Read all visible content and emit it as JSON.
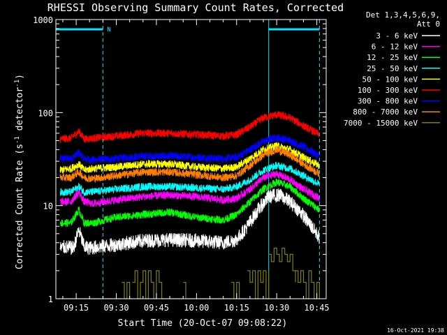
{
  "chart_data": {
    "type": "line",
    "title": "RHESSI Observing Summary Count Rates, Corrected",
    "xlabel": "Start Time (20-Oct-07 09:08:22)",
    "ylabel": "Corrected Count Rate (s^-1 detector^-1)",
    "ylabel_parts": [
      "Corrected Count Rate (s",
      "-1",
      " detector",
      "-1",
      ")"
    ],
    "y_scale": "log",
    "ylim": [
      1,
      1000
    ],
    "xlim_minutes": [
      -7.6,
      93.5
    ],
    "y_tick_labels": [
      "1",
      "10",
      "100",
      "1000"
    ],
    "x_tick_labels": [
      "09:15",
      "09:30",
      "09:45",
      "10:00",
      "10:15",
      "10:30",
      "10:45"
    ],
    "x_tick_minutes": [
      0,
      15,
      30,
      45,
      60,
      75,
      90
    ],
    "legend_header": [
      "Det 1,3,4,5,6,9,",
      "Att 0"
    ],
    "legend_position": "top-right",
    "timestamp": "16-Oct-2021 19:38",
    "night_bars": [
      {
        "start": -7.6,
        "end": 10.0,
        "label": "N"
      },
      {
        "start": 72.0,
        "end": 91.0,
        "label": ""
      }
    ],
    "night_boundaries": [
      -7.6,
      10.0,
      72.0,
      91.0
    ],
    "series": [
      {
        "name": "3 - 6 keV",
        "color": "#ffffff",
        "x": [
          -6,
          -4,
          -1,
          1,
          3,
          5,
          8,
          15,
          25,
          35,
          45,
          55,
          60,
          64,
          68,
          72,
          76,
          80,
          84,
          88,
          91
        ],
        "y": [
          3.5,
          3.6,
          3.5,
          5.5,
          3.6,
          3.5,
          3.6,
          3.8,
          4.2,
          4.3,
          4.2,
          4.0,
          4.3,
          6.0,
          9.0,
          12.5,
          13.0,
          11.0,
          8.5,
          6.0,
          4.5
        ]
      },
      {
        "name": "6 - 12 keV",
        "color": "#ff00ff",
        "x": [
          -6,
          -2,
          1,
          3,
          6,
          15,
          25,
          35,
          45,
          55,
          60,
          65,
          70,
          75,
          80,
          85,
          91
        ],
        "y": [
          11,
          11,
          14,
          11,
          10.5,
          11.5,
          12.5,
          13,
          12.5,
          11.5,
          12,
          15,
          20,
          22,
          19,
          15,
          12
        ]
      },
      {
        "name": "12 - 25 keV",
        "color": "#00ff00",
        "x": [
          -6,
          -2,
          1,
          3,
          6,
          15,
          25,
          35,
          45,
          55,
          60,
          65,
          70,
          75,
          80,
          85,
          91
        ],
        "y": [
          6.5,
          6.5,
          9,
          6.5,
          6.5,
          7.5,
          8,
          8.5,
          7.5,
          7,
          8,
          11,
          15,
          18,
          16,
          12,
          9
        ]
      },
      {
        "name": "25 - 50 keV",
        "color": "#00ffff",
        "x": [
          -6,
          -2,
          1,
          3,
          6,
          15,
          25,
          35,
          45,
          55,
          60,
          65,
          70,
          75,
          80,
          85,
          91
        ],
        "y": [
          14,
          14,
          16,
          14,
          14,
          15,
          16,
          16,
          15.5,
          15,
          16,
          19,
          24,
          27,
          25,
          21,
          17
        ]
      },
      {
        "name": "50 - 100 keV",
        "color": "#ffff00",
        "x": [
          -6,
          -2,
          1,
          3,
          6,
          15,
          25,
          35,
          45,
          55,
          60,
          65,
          70,
          75,
          80,
          85,
          91
        ],
        "y": [
          24,
          25,
          28,
          24,
          25,
          26,
          28,
          28,
          26,
          25,
          26,
          32,
          40,
          44,
          40,
          33,
          27
        ]
      },
      {
        "name": "100 - 300 keV",
        "color": "#ff0000",
        "x": [
          -6,
          -2,
          1,
          3,
          6,
          15,
          25,
          35,
          45,
          55,
          60,
          65,
          70,
          75,
          80,
          85,
          91
        ],
        "y": [
          52,
          53,
          63,
          52,
          53,
          56,
          60,
          60,
          58,
          56,
          58,
          70,
          88,
          95,
          88,
          72,
          58
        ]
      },
      {
        "name": "300 - 800 keV",
        "color": "#0000ff",
        "x": [
          -6,
          -2,
          1,
          3,
          6,
          15,
          25,
          35,
          45,
          55,
          60,
          65,
          70,
          75,
          80,
          85,
          91
        ],
        "y": [
          32,
          32,
          37,
          32,
          31,
          32,
          34,
          34,
          33,
          32,
          33,
          40,
          49,
          54,
          50,
          43,
          34
        ]
      },
      {
        "name": "800 - 7000 keV",
        "color": "#ff8000",
        "x": [
          -6,
          -2,
          1,
          3,
          6,
          15,
          25,
          35,
          45,
          55,
          60,
          65,
          70,
          75,
          80,
          85,
          91
        ],
        "y": [
          20,
          20,
          23,
          20,
          19.5,
          21,
          23,
          23,
          21.5,
          20,
          21,
          27,
          35,
          40,
          35,
          28,
          22
        ]
      },
      {
        "name": "7000 - 15000 keV",
        "color": "#808000",
        "x": [],
        "y": [],
        "segments": [
          {
            "x": [
              -7,
              17
            ],
            "y": [
              1,
              1
            ]
          },
          {
            "x": [
              17,
              18,
              19,
              20,
              21
            ],
            "y": [
              1.5,
              1,
              1.5,
              1,
              1
            ]
          },
          {
            "x": [
              21,
              22,
              23,
              24,
              25,
              26,
              27,
              28,
              29,
              30,
              31,
              32,
              33
            ],
            "y": [
              1.5,
              2,
              1,
              1.5,
              2,
              1,
              2,
              1.5,
              1,
              2,
              1.5,
              1,
              1
            ]
          },
          {
            "x": [
              33,
              40
            ],
            "y": [
              1,
              1
            ]
          },
          {
            "x": [
              40,
              41,
              42
            ],
            "y": [
              1.5,
              1,
              1
            ]
          },
          {
            "x": [
              42,
              58
            ],
            "y": [
              1,
              1
            ]
          },
          {
            "x": [
              58,
              59,
              60,
              61
            ],
            "y": [
              1.5,
              1,
              1.5,
              1
            ]
          },
          {
            "x": [
              61,
              64
            ],
            "y": [
              1,
              1
            ]
          },
          {
            "x": [
              64,
              65,
              66,
              67,
              68,
              69,
              70,
              71,
              72
            ],
            "y": [
              2,
              1.5,
              2,
              1,
              2,
              1.5,
              2,
              1,
              2
            ]
          },
          {
            "x": [
              72,
              73,
              74,
              75,
              76,
              77,
              78,
              79,
              80,
              81,
              82
            ],
            "y": [
              3,
              2.5,
              3.5,
              3,
              2.5,
              3.5,
              3,
              2.5,
              3,
              2,
              1.5
            ]
          },
          {
            "x": [
              82,
              83,
              84,
              85,
              86,
              87,
              88,
              89,
              90,
              91
            ],
            "y": [
              2,
              1.5,
              2,
              1.5,
              1,
              2,
              1.5,
              1,
              1.5,
              1
            ]
          }
        ]
      }
    ]
  }
}
